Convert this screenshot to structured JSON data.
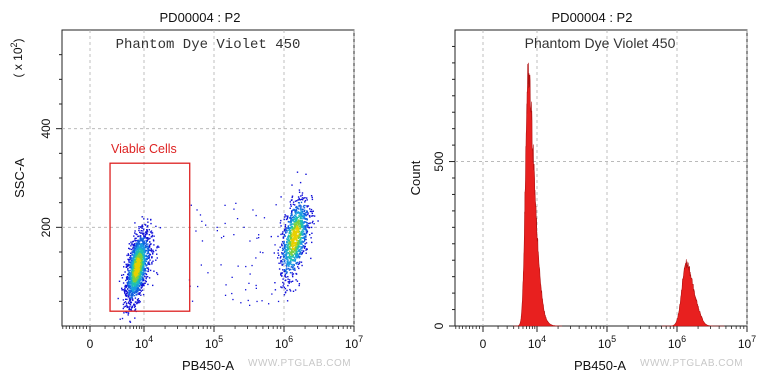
{
  "chart_data": [
    {
      "type": "scatter",
      "title": "PD00004 : P2",
      "subtitle": "Phantom Dye Violet 450",
      "xlabel": "PB450-A",
      "ylabel": "SSC-A",
      "y_multiplier_label": "( x 10",
      "y_multiplier_exp": "2",
      "y_multiplier_close": ")",
      "x_scale": "biexponential",
      "x_ticks": [
        {
          "value": 0,
          "base": "0",
          "exp": ""
        },
        {
          "value": 10000,
          "base": "10",
          "exp": "4"
        },
        {
          "value": 100000,
          "base": "10",
          "exp": "5"
        },
        {
          "value": 1000000,
          "base": "10",
          "exp": "6"
        },
        {
          "value": 10000000,
          "base": "10",
          "exp": "7"
        }
      ],
      "ylim": [
        0,
        600
      ],
      "y_ticks": [
        200,
        400
      ],
      "grid": true,
      "gate": {
        "label": "Viable Cells",
        "x_range": [
          1500,
          45000
        ],
        "y_range": [
          30,
          330
        ],
        "color": "#dd2222"
      },
      "populations": [
        {
          "name": "",
          "x_center": 7000,
          "x_spread_decades": 0.12,
          "y_center": 120,
          "y_spread": 30,
          "count": 1800
        },
        {
          "name": "",
          "x_center": 1400000,
          "x_spread_decades": 0.1,
          "y_center": 180,
          "y_spread": 35,
          "count": 1100
        }
      ],
      "watermark": "WWW.PTGLAB.COM"
    },
    {
      "type": "area",
      "title": "PD00004 : P2",
      "subtitle": "Phantom Dye Violet 450",
      "xlabel": "PB450-A",
      "ylabel": "Count",
      "x_scale": "biexponential",
      "x_ticks": [
        {
          "value": 0,
          "base": "0",
          "exp": ""
        },
        {
          "value": 10000,
          "base": "10",
          "exp": "4"
        },
        {
          "value": 100000,
          "base": "10",
          "exp": "5"
        },
        {
          "value": 1000000,
          "base": "10",
          "exp": "6"
        },
        {
          "value": 10000000,
          "base": "10",
          "exp": "7"
        }
      ],
      "ylim": [
        0,
        900
      ],
      "y_ticks": [
        0,
        500
      ],
      "grid": true,
      "fill_color": "#e8201f",
      "peaks": [
        {
          "x_center": 6500,
          "height": 750
        },
        {
          "x_center": 1350000,
          "height": 190
        }
      ],
      "watermark": "WWW.PTGLAB.COM"
    }
  ]
}
